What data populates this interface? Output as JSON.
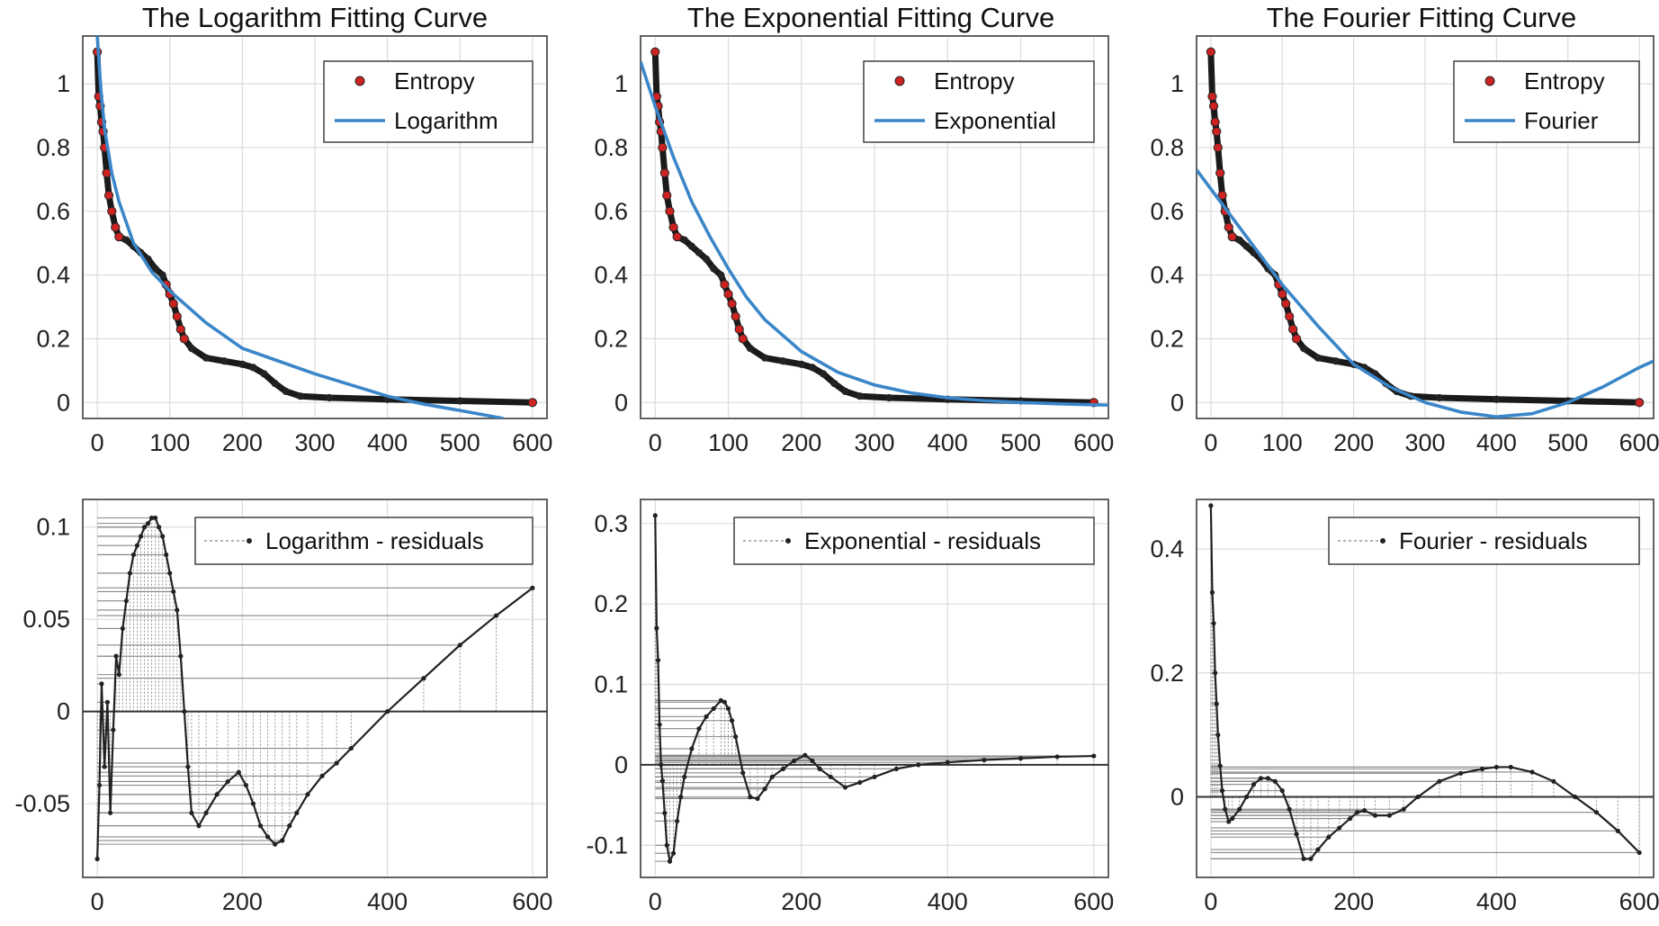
{
  "colors": {
    "fit": "#3a86c8",
    "marker": "#cc2222",
    "residual": "#222222",
    "stem": "#888888",
    "zero": "#333333"
  },
  "chart_data": [
    {
      "id": "log_fit",
      "type": "scatter+line",
      "title": "The Logarithm Fitting Curve",
      "xlim": [
        -20,
        620
      ],
      "ylim": [
        -0.05,
        1.15
      ],
      "xticks": [
        0,
        100,
        200,
        300,
        400,
        500,
        600
      ],
      "xtick_labels": [
        "0",
        "100",
        "200",
        "300",
        "400",
        "500",
        "600"
      ],
      "yticks": [
        0,
        0.2,
        0.4,
        0.6,
        0.8,
        1
      ],
      "ytick_labels": [
        "0",
        "0.2",
        "0.4",
        "0.6",
        "0.8",
        "1"
      ],
      "legend": [
        "Entropy",
        "Logarithm"
      ],
      "legend_position": "top-right",
      "fit": "log",
      "series": [
        {
          "name": "Entropy",
          "style": "markers",
          "x": [
            0,
            2,
            4,
            6,
            8,
            10,
            13,
            16,
            20,
            25,
            30,
            40,
            50,
            60,
            70,
            80,
            90,
            95,
            100,
            105,
            110,
            115,
            120,
            130,
            150,
            175,
            200,
            215,
            230,
            245,
            260,
            280,
            320,
            400,
            500,
            600
          ],
          "y": [
            1.1,
            0.96,
            0.93,
            0.88,
            0.85,
            0.8,
            0.72,
            0.65,
            0.6,
            0.55,
            0.52,
            0.51,
            0.49,
            0.47,
            0.45,
            0.42,
            0.4,
            0.37,
            0.34,
            0.31,
            0.27,
            0.23,
            0.2,
            0.17,
            0.14,
            0.13,
            0.12,
            0.11,
            0.09,
            0.06,
            0.035,
            0.02,
            0.015,
            0.01,
            0.005,
            0.0
          ]
        },
        {
          "name": "Logarithm",
          "style": "line",
          "model": "y = 1.3 - 0.00245x + 0.4*ln(1/(x+18)) approx",
          "x": [
            0,
            5,
            10,
            20,
            30,
            50,
            75,
            100,
            150,
            200,
            250,
            300,
            350,
            400,
            450,
            500,
            560
          ],
          "y": [
            1.15,
            0.98,
            0.86,
            0.72,
            0.63,
            0.5,
            0.41,
            0.35,
            0.25,
            0.17,
            0.13,
            0.09,
            0.055,
            0.02,
            -0.005,
            -0.025,
            -0.05
          ]
        }
      ]
    },
    {
      "id": "exp_fit",
      "type": "scatter+line",
      "title": "The Exponential Fitting Curve",
      "xlim": [
        -20,
        620
      ],
      "ylim": [
        -0.05,
        1.15
      ],
      "xticks": [
        0,
        100,
        200,
        300,
        400,
        500,
        600
      ],
      "xtick_labels": [
        "0",
        "100",
        "200",
        "300",
        "400",
        "500",
        "600"
      ],
      "yticks": [
        0,
        0.2,
        0.4,
        0.6,
        0.8,
        1
      ],
      "ytick_labels": [
        "0",
        "0.2",
        "0.4",
        "0.6",
        "0.8",
        "1"
      ],
      "legend": [
        "Entropy",
        "Exponential"
      ],
      "legend_position": "top-right",
      "fit": "exp",
      "series": [
        {
          "name": "Entropy",
          "style": "markers",
          "x": [
            0,
            2,
            4,
            6,
            8,
            10,
            13,
            16,
            20,
            25,
            30,
            40,
            50,
            60,
            70,
            80,
            90,
            95,
            100,
            105,
            110,
            115,
            120,
            130,
            150,
            175,
            200,
            215,
            230,
            245,
            260,
            280,
            320,
            400,
            500,
            600
          ],
          "y": [
            1.1,
            0.96,
            0.93,
            0.88,
            0.85,
            0.8,
            0.72,
            0.65,
            0.6,
            0.55,
            0.52,
            0.51,
            0.49,
            0.47,
            0.45,
            0.42,
            0.4,
            0.37,
            0.34,
            0.31,
            0.27,
            0.23,
            0.2,
            0.17,
            0.14,
            0.13,
            0.12,
            0.11,
            0.09,
            0.06,
            0.035,
            0.02,
            0.015,
            0.01,
            0.005,
            0.0
          ]
        },
        {
          "name": "Exponential",
          "style": "line",
          "x": [
            -20,
            0,
            25,
            50,
            75,
            100,
            125,
            150,
            200,
            250,
            300,
            350,
            400,
            450,
            500,
            550,
            600,
            620
          ],
          "y": [
            1.07,
            0.93,
            0.77,
            0.63,
            0.52,
            0.42,
            0.33,
            0.26,
            0.16,
            0.095,
            0.055,
            0.03,
            0.015,
            0.006,
            0.0,
            -0.004,
            -0.007,
            -0.008
          ]
        }
      ]
    },
    {
      "id": "fourier_fit",
      "type": "scatter+line",
      "title": "The Fourier Fitting Curve",
      "xlim": [
        -20,
        620
      ],
      "ylim": [
        -0.05,
        1.15
      ],
      "xticks": [
        0,
        100,
        200,
        300,
        400,
        500,
        600
      ],
      "xtick_labels": [
        "0",
        "100",
        "200",
        "300",
        "400",
        "500",
        "600"
      ],
      "yticks": [
        0,
        0.2,
        0.4,
        0.6,
        0.8,
        1
      ],
      "ytick_labels": [
        "0",
        "0.2",
        "0.4",
        "0.6",
        "0.8",
        "1"
      ],
      "legend": [
        "Entropy",
        "Fourier"
      ],
      "legend_position": "top-right",
      "fit": "fourier",
      "series": [
        {
          "name": "Entropy",
          "style": "markers",
          "x": [
            0,
            2,
            4,
            6,
            8,
            10,
            13,
            16,
            20,
            25,
            30,
            40,
            50,
            60,
            70,
            80,
            90,
            95,
            100,
            105,
            110,
            115,
            120,
            130,
            150,
            175,
            200,
            215,
            230,
            245,
            260,
            280,
            320,
            400,
            500,
            600
          ],
          "y": [
            1.1,
            0.96,
            0.93,
            0.88,
            0.85,
            0.8,
            0.72,
            0.65,
            0.6,
            0.55,
            0.52,
            0.51,
            0.49,
            0.47,
            0.45,
            0.42,
            0.4,
            0.37,
            0.34,
            0.31,
            0.27,
            0.23,
            0.2,
            0.17,
            0.14,
            0.13,
            0.12,
            0.11,
            0.09,
            0.06,
            0.035,
            0.02,
            0.015,
            0.01,
            0.005,
            0.0
          ]
        },
        {
          "name": "Fourier",
          "style": "line",
          "x": [
            -20,
            0,
            50,
            100,
            150,
            200,
            250,
            300,
            350,
            400,
            450,
            500,
            550,
            600,
            620
          ],
          "y": [
            0.73,
            0.67,
            0.52,
            0.37,
            0.24,
            0.12,
            0.05,
            0.0,
            -0.03,
            -0.045,
            -0.035,
            0.0,
            0.05,
            0.11,
            0.13
          ]
        }
      ]
    },
    {
      "id": "log_resid",
      "type": "stem",
      "title": "",
      "xlim": [
        -20,
        620
      ],
      "ylim": [
        -0.09,
        0.115
      ],
      "xticks": [
        0,
        200,
        400,
        600
      ],
      "xtick_labels": [
        "0",
        "200",
        "400",
        "600"
      ],
      "yticks": [
        -0.05,
        0,
        0.05,
        0.1
      ],
      "ytick_labels": [
        "-0.05",
        "0",
        "0.05",
        "0.1"
      ],
      "legend": [
        "Logarithm - residuals"
      ],
      "legend_position": "top-right",
      "series": [
        {
          "name": "Logarithm - residuals",
          "x": [
            0,
            3,
            6,
            10,
            14,
            18,
            22,
            26,
            30,
            35,
            40,
            45,
            50,
            55,
            60,
            65,
            70,
            75,
            80,
            85,
            90,
            95,
            100,
            105,
            110,
            115,
            120,
            125,
            130,
            140,
            150,
            165,
            180,
            195,
            205,
            215,
            225,
            235,
            245,
            255,
            265,
            275,
            290,
            310,
            330,
            350,
            400,
            450,
            500,
            550,
            600
          ],
          "y": [
            -0.08,
            -0.04,
            0.015,
            -0.03,
            0.005,
            -0.055,
            -0.01,
            0.03,
            0.02,
            0.045,
            0.06,
            0.075,
            0.085,
            0.09,
            0.095,
            0.1,
            0.102,
            0.105,
            0.105,
            0.1,
            0.095,
            0.085,
            0.075,
            0.065,
            0.055,
            0.03,
            0.0,
            -0.03,
            -0.055,
            -0.062,
            -0.055,
            -0.045,
            -0.038,
            -0.033,
            -0.04,
            -0.05,
            -0.062,
            -0.068,
            -0.072,
            -0.07,
            -0.062,
            -0.055,
            -0.045,
            -0.035,
            -0.028,
            -0.02,
            0.0,
            0.018,
            0.036,
            0.052,
            0.067
          ]
        }
      ]
    },
    {
      "id": "exp_resid",
      "type": "stem",
      "title": "",
      "xlim": [
        -20,
        620
      ],
      "ylim": [
        -0.14,
        0.33
      ],
      "xticks": [
        0,
        200,
        400,
        600
      ],
      "xtick_labels": [
        "0",
        "200",
        "400",
        "600"
      ],
      "yticks": [
        -0.1,
        0,
        0.1,
        0.2,
        0.3
      ],
      "ytick_labels": [
        "-0.1",
        "0",
        "0.1",
        "0.2",
        "0.3"
      ],
      "legend": [
        "Exponential - residuals"
      ],
      "legend_position": "top-right",
      "series": [
        {
          "name": "Exponential - residuals",
          "x": [
            0,
            2,
            4,
            6,
            8,
            10,
            13,
            16,
            20,
            25,
            30,
            35,
            40,
            50,
            60,
            70,
            80,
            90,
            95,
            100,
            105,
            110,
            120,
            130,
            140,
            150,
            160,
            175,
            190,
            205,
            215,
            225,
            240,
            260,
            280,
            300,
            330,
            360,
            400,
            450,
            500,
            550,
            600
          ],
          "y": [
            0.31,
            0.17,
            0.13,
            0.05,
            0.0,
            -0.02,
            -0.06,
            -0.1,
            -0.12,
            -0.11,
            -0.07,
            -0.04,
            -0.015,
            0.02,
            0.045,
            0.06,
            0.07,
            0.08,
            0.078,
            0.07,
            0.055,
            0.035,
            -0.01,
            -0.04,
            -0.042,
            -0.03,
            -0.015,
            -0.005,
            0.005,
            0.012,
            0.005,
            -0.005,
            -0.015,
            -0.028,
            -0.022,
            -0.015,
            -0.005,
            0.0,
            0.003,
            0.006,
            0.008,
            0.01,
            0.011
          ]
        }
      ]
    },
    {
      "id": "fourier_resid",
      "type": "stem",
      "title": "",
      "xlim": [
        -20,
        620
      ],
      "ylim": [
        -0.13,
        0.48
      ],
      "xticks": [
        0,
        200,
        400,
        600
      ],
      "xtick_labels": [
        "0",
        "200",
        "400",
        "600"
      ],
      "yticks": [
        0,
        0.2,
        0.4
      ],
      "ytick_labels": [
        "0",
        "0.2",
        "0.4"
      ],
      "legend": [
        "Fourier - residuals"
      ],
      "legend_position": "top-right",
      "series": [
        {
          "name": "Fourier - residuals",
          "x": [
            0,
            2,
            4,
            6,
            8,
            10,
            13,
            16,
            20,
            25,
            30,
            40,
            50,
            60,
            70,
            80,
            90,
            100,
            110,
            120,
            130,
            140,
            150,
            165,
            180,
            195,
            205,
            215,
            230,
            250,
            270,
            290,
            320,
            350,
            380,
            400,
            420,
            450,
            480,
            510,
            540,
            570,
            600
          ],
          "y": [
            0.47,
            0.33,
            0.28,
            0.2,
            0.15,
            0.1,
            0.05,
            0.01,
            -0.02,
            -0.04,
            -0.035,
            -0.02,
            0.0,
            0.02,
            0.03,
            0.03,
            0.025,
            0.01,
            -0.02,
            -0.06,
            -0.1,
            -0.1,
            -0.085,
            -0.065,
            -0.05,
            -0.035,
            -0.025,
            -0.022,
            -0.03,
            -0.03,
            -0.02,
            0.0,
            0.025,
            0.038,
            0.045,
            0.048,
            0.048,
            0.04,
            0.025,
            0.0,
            -0.025,
            -0.055,
            -0.09
          ]
        }
      ]
    }
  ]
}
